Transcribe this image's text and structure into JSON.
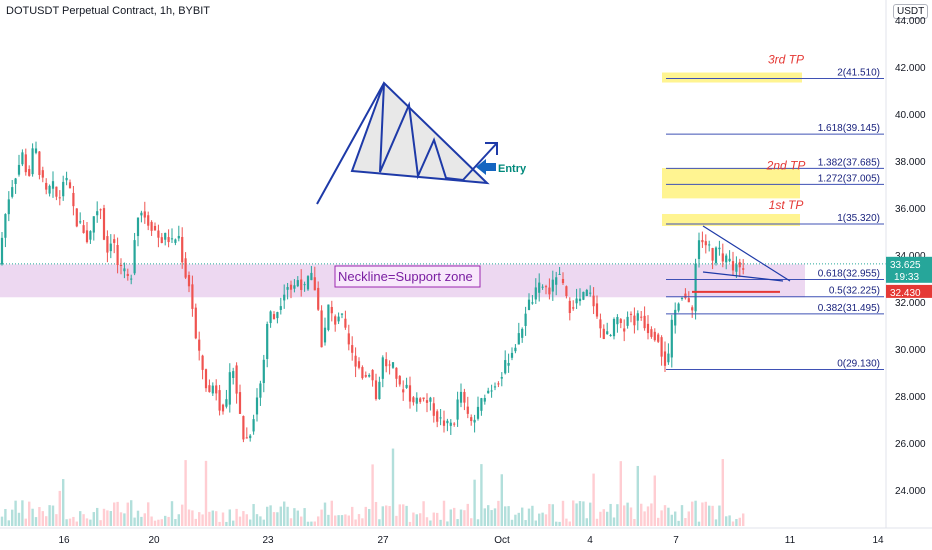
{
  "header": {
    "title": "DOTUSDT Perpetual Contract, 1h, BYBIT",
    "currency": "USDT"
  },
  "colors": {
    "up": "#26a69a",
    "down": "#ef5350",
    "fib": "#3f51b5",
    "tp": "#e53935",
    "zone": "#e1bee7",
    "highlight": "#fff176",
    "triangle": "#1e3aa8"
  },
  "chart_data": {
    "type": "candlestick",
    "y_ticks": [
      "24.000",
      "26.000",
      "28.000",
      "30.000",
      "32.000",
      "34.000",
      "36.000",
      "38.000",
      "40.000",
      "42.000",
      "44.000"
    ],
    "x_ticks": [
      "16",
      "20",
      "23",
      "27",
      "Oct",
      "4",
      "7",
      "11",
      "14"
    ],
    "ylim": [
      23,
      45
    ],
    "price_path": [
      [
        0,
        33.5
      ],
      [
        6,
        35.5
      ],
      [
        12,
        36.8
      ],
      [
        18,
        37.5
      ],
      [
        24,
        38.3
      ],
      [
        30,
        37.2
      ],
      [
        36,
        38.8
      ],
      [
        42,
        37.4
      ],
      [
        48,
        36.6
      ],
      [
        54,
        37.0
      ],
      [
        60,
        36.2
      ],
      [
        66,
        37.4
      ],
      [
        72,
        36.6
      ],
      [
        78,
        35.4
      ],
      [
        84,
        35.2
      ],
      [
        90,
        34.5
      ],
      [
        96,
        35.8
      ],
      [
        102,
        36.1
      ],
      [
        108,
        34.0
      ],
      [
        114,
        34.9
      ],
      [
        120,
        33.4
      ],
      [
        126,
        33.2
      ],
      [
        132,
        32.8
      ],
      [
        138,
        35.6
      ],
      [
        144,
        35.9
      ],
      [
        150,
        35.4
      ],
      [
        156,
        35.1
      ],
      [
        162,
        34.6
      ],
      [
        168,
        34.8
      ],
      [
        174,
        34.5
      ],
      [
        180,
        34.9
      ],
      [
        186,
        33.3
      ],
      [
        192,
        32.6
      ],
      [
        198,
        30.2
      ],
      [
        204,
        29.2
      ],
      [
        210,
        28.0
      ],
      [
        216,
        28.6
      ],
      [
        222,
        27.5
      ],
      [
        228,
        27.6
      ],
      [
        234,
        29.6
      ],
      [
        240,
        27.6
      ],
      [
        246,
        26.0
      ],
      [
        252,
        26.5
      ],
      [
        258,
        27.8
      ],
      [
        264,
        28.9
      ],
      [
        270,
        31.6
      ],
      [
        276,
        31.3
      ],
      [
        282,
        32.0
      ],
      [
        288,
        32.8
      ],
      [
        294,
        32.5
      ],
      [
        300,
        33.0
      ],
      [
        306,
        32.5
      ],
      [
        312,
        33.2
      ],
      [
        318,
        32.4
      ],
      [
        324,
        30.0
      ],
      [
        330,
        31.8
      ],
      [
        336,
        31.1
      ],
      [
        342,
        31.6
      ],
      [
        348,
        30.5
      ],
      [
        354,
        29.7
      ],
      [
        360,
        29.3
      ],
      [
        366,
        28.7
      ],
      [
        372,
        29.2
      ],
      [
        378,
        27.8
      ],
      [
        384,
        29.6
      ],
      [
        390,
        29.2
      ],
      [
        396,
        29.2
      ],
      [
        402,
        28.2
      ],
      [
        408,
        28.5
      ],
      [
        414,
        27.6
      ],
      [
        420,
        28.0
      ],
      [
        426,
        27.8
      ],
      [
        432,
        27.7
      ],
      [
        438,
        27.1
      ],
      [
        444,
        26.9
      ],
      [
        450,
        26.7
      ],
      [
        456,
        27.0
      ],
      [
        462,
        28.3
      ],
      [
        468,
        27.2
      ],
      [
        474,
        26.8
      ],
      [
        480,
        27.4
      ],
      [
        486,
        28.1
      ],
      [
        492,
        28.3
      ],
      [
        498,
        28.6
      ],
      [
        504,
        29.0
      ],
      [
        510,
        29.6
      ],
      [
        516,
        30.1
      ],
      [
        522,
        30.6
      ],
      [
        528,
        31.8
      ],
      [
        534,
        32.1
      ],
      [
        540,
        32.6
      ],
      [
        546,
        32.7
      ],
      [
        552,
        32.4
      ],
      [
        558,
        33.2
      ],
      [
        564,
        32.8
      ],
      [
        570,
        31.7
      ],
      [
        576,
        32.0
      ],
      [
        582,
        32.1
      ],
      [
        588,
        32.4
      ],
      [
        594,
        32.2
      ],
      [
        600,
        31.0
      ],
      [
        606,
        30.6
      ],
      [
        612,
        30.5
      ],
      [
        618,
        31.4
      ],
      [
        624,
        30.7
      ],
      [
        630,
        31.6
      ],
      [
        636,
        31.2
      ],
      [
        642,
        31.5
      ],
      [
        648,
        30.9
      ],
      [
        654,
        30.7
      ],
      [
        660,
        30.5
      ],
      [
        666,
        29.4
      ],
      [
        670,
        29.6
      ],
      [
        674,
        31.2
      ],
      [
        678,
        31.8
      ],
      [
        682,
        32.4
      ],
      [
        686,
        32.3
      ],
      [
        690,
        31.8
      ],
      [
        694,
        31.6
      ],
      [
        698,
        34.3
      ],
      [
        702,
        34.8
      ],
      [
        706,
        34.4
      ],
      [
        710,
        34.5
      ],
      [
        714,
        33.6
      ],
      [
        718,
        34.3
      ],
      [
        722,
        34.0
      ],
      [
        726,
        33.5
      ],
      [
        730,
        34.0
      ],
      [
        734,
        33.2
      ],
      [
        738,
        33.7
      ],
      [
        742,
        33.4
      ],
      [
        746,
        33.6
      ]
    ],
    "price_lines": [
      {
        "name": "last",
        "value": 33.625,
        "label": "33.625",
        "sublabel": "19:33",
        "color": "#26a69a"
      },
      {
        "name": "level",
        "value": 32.43,
        "label": "32.430",
        "color": "#e53935"
      }
    ],
    "fib_levels": [
      {
        "ratio": "0",
        "price": 29.13,
        "label": "0(29.130)"
      },
      {
        "ratio": "0.382",
        "price": 31.495,
        "label": "0.382(31.495)"
      },
      {
        "ratio": "0.5",
        "price": 32.225,
        "label": "0.5(32.225)"
      },
      {
        "ratio": "0.618",
        "price": 32.955,
        "label": "0.618(32.955)"
      },
      {
        "ratio": "1",
        "price": 35.32,
        "label": "1(35.320)"
      },
      {
        "ratio": "1.272",
        "price": 37.005,
        "label": "1.272(37.005)"
      },
      {
        "ratio": "1.382",
        "price": 37.685,
        "label": "1.382(37.685)"
      },
      {
        "ratio": "1.618",
        "price": 39.145,
        "label": "1.618(39.145)"
      },
      {
        "ratio": "2",
        "price": 41.51,
        "label": "2(41.510)"
      }
    ],
    "tp_labels": [
      {
        "text": "1st TP",
        "price": 35.32
      },
      {
        "text": "2nd TP",
        "price": 37.005
      },
      {
        "text": "3rd TP",
        "price": 41.51
      }
    ],
    "zone": {
      "low": 32.2,
      "high": 33.6,
      "label": "Neckline=Support zone"
    },
    "entry_label": "Entry"
  }
}
